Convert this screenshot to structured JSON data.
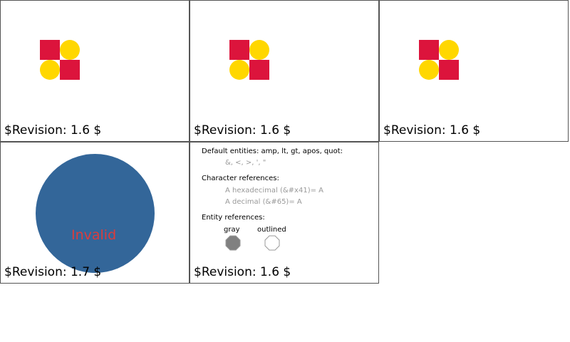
{
  "panels": [
    {
      "revision": "$Revision: 1.6 $"
    },
    {
      "revision": "$Revision: 1.6 $"
    },
    {
      "revision": "$Revision: 1.6 $"
    },
    {
      "revision": "$Revision: 1.7 $",
      "label": "Invalid"
    },
    {
      "revision": "$Revision: 1.6 $"
    }
  ],
  "entities": {
    "default_heading": "Default entities: amp, lt, gt, apos, quot:",
    "default_values": "&, <, >, ', \"",
    "char_heading": "Character references:",
    "hex_line": "A hexadecimal (&#x41)= A",
    "dec_line": "A decimal (&#65)= A",
    "entity_heading": "Entity references:",
    "gray_label": "gray",
    "outlined_label": "outlined"
  },
  "colors": {
    "red": "#dc143c",
    "yellow": "#ffd700",
    "blue": "#336699",
    "invalid": "#dc3c3c",
    "gray": "#808080"
  }
}
